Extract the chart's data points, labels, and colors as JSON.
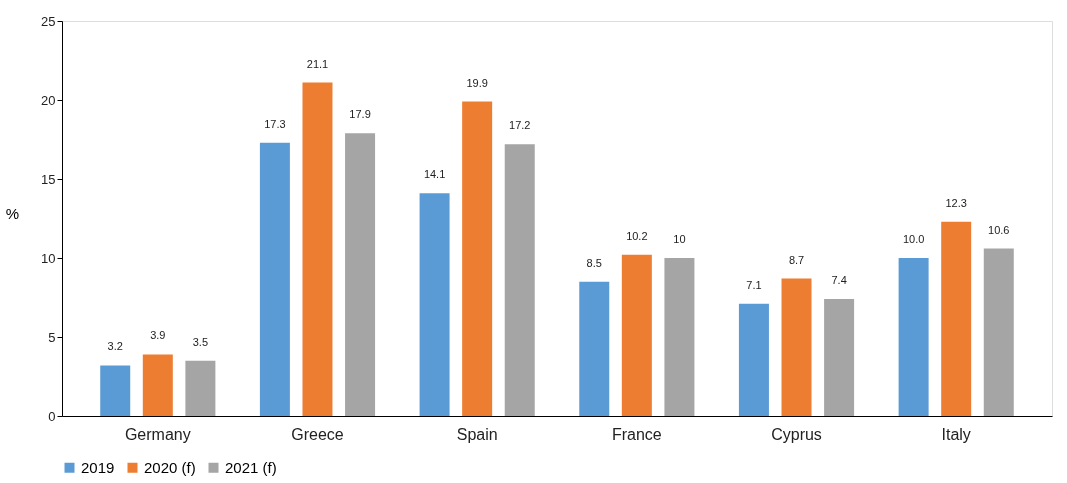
{
  "chart_data": {
    "type": "bar",
    "ylabel": "%",
    "categories": [
      "Germany",
      "Greece",
      "Spain",
      "France",
      "Cyprus",
      "Italy"
    ],
    "series": [
      {
        "name": "2019",
        "color": "#5b9bd5",
        "values": [
          3.2,
          17.3,
          14.1,
          8.5,
          7.1,
          10.0
        ],
        "value_labels": [
          "3.2",
          "17.3",
          "14.1",
          "8.5",
          "7.1",
          "10.0"
        ]
      },
      {
        "name": "2020 (f)",
        "color": "#ed7d31",
        "values": [
          3.9,
          21.1,
          19.9,
          10.2,
          8.7,
          12.3
        ],
        "value_labels": [
          "3.9",
          "21.1",
          "19.9",
          "10.2",
          "8.7",
          "12.3"
        ]
      },
      {
        "name": "2021 (f)",
        "color": "#a5a5a5",
        "values": [
          3.5,
          17.9,
          17.2,
          10,
          7.4,
          10.6
        ],
        "value_labels": [
          "3.5",
          "17.9",
          "17.2",
          "10",
          "7.4",
          "10.6"
        ]
      }
    ],
    "ylim": [
      0,
      25
    ],
    "yticks": [
      0,
      5,
      10,
      15,
      20,
      25
    ],
    "grid": false,
    "legend": "bottom"
  }
}
